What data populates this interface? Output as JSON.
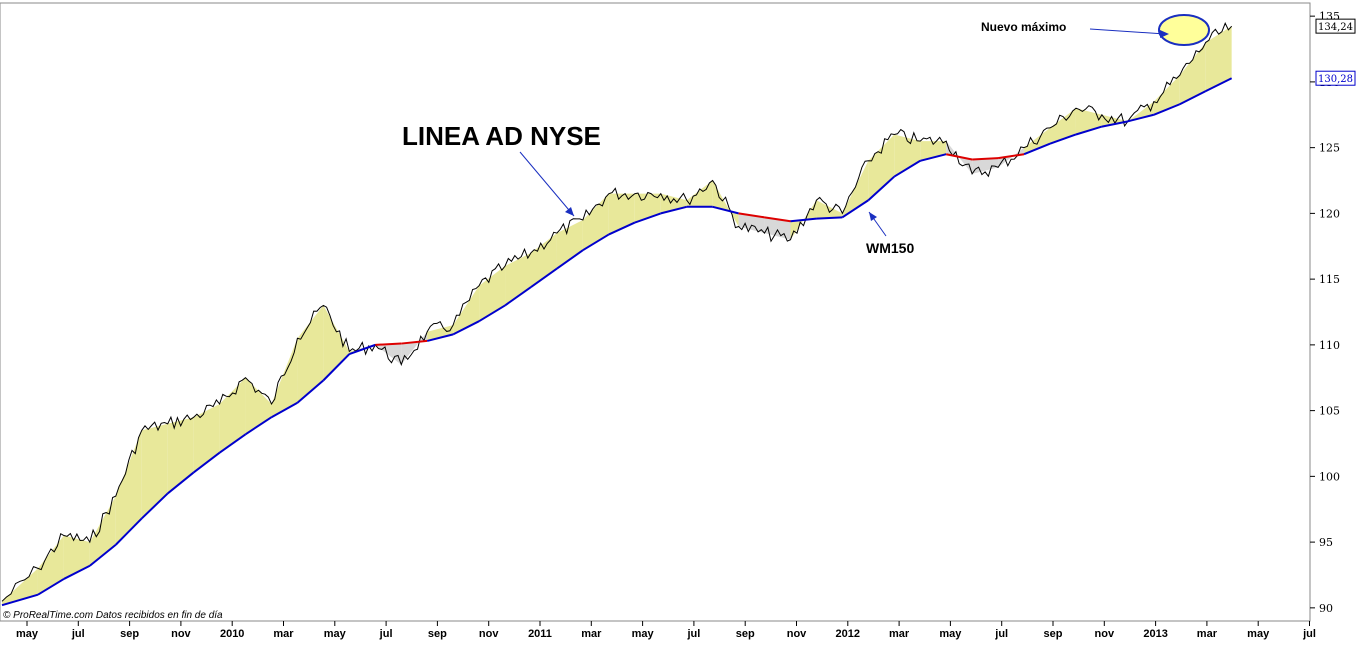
{
  "chart_data": {
    "type": "line",
    "title": "LINEA AD NYSE",
    "annotations": {
      "new_high": "Nuevo máximo",
      "ma_label": "WM150"
    },
    "footer": "© ProRealTime.com  Datos recibidos en fin de día",
    "xlabel": "",
    "ylabel": "",
    "ylim": [
      89,
      136
    ],
    "yticks": [
      90,
      95,
      100,
      105,
      110,
      115,
      120,
      125,
      130,
      135
    ],
    "x_tick_labels": [
      "may",
      "jul",
      "sep",
      "nov",
      "2010",
      "mar",
      "may",
      "jul",
      "sep",
      "nov",
      "2011",
      "mar",
      "may",
      "jul",
      "sep",
      "nov",
      "2012",
      "mar",
      "may",
      "jul",
      "sep",
      "nov",
      "2013",
      "mar",
      "may",
      "jul"
    ],
    "last_values": {
      "price": "134,24",
      "ma": "130,28"
    },
    "series": [
      {
        "x": [
          "2009-04",
          "2009-05",
          "2009-06",
          "2009-07",
          "2009-08",
          "2009-09",
          "2009-10",
          "2009-11",
          "2009-12",
          "2010-01",
          "2010-02",
          "2010-03",
          "2010-04",
          "2010-05",
          "2010-06",
          "2010-07",
          "2010-08",
          "2010-09",
          "2010-10",
          "2010-11",
          "2010-12",
          "2011-01",
          "2011-02",
          "2011-03",
          "2011-04",
          "2011-05",
          "2011-06",
          "2011-07",
          "2011-08",
          "2011-09",
          "2011-10",
          "2011-11",
          "2011-12",
          "2012-01",
          "2012-02",
          "2012-03",
          "2012-04",
          "2012-05",
          "2012-06",
          "2012-07",
          "2012-08",
          "2012-09",
          "2012-10",
          "2012-11",
          "2012-12",
          "2013-01",
          "2013-02",
          "2013-03"
        ],
        "values": [
          90.5,
          93.0,
          95.5,
          95.0,
          98.5,
          103.5,
          104.0,
          104.5,
          105.5,
          107.5,
          105.5,
          110.5,
          113.0,
          109.5,
          110.0,
          108.5,
          111.0,
          111.5,
          114.5,
          116.0,
          117.0,
          118.5,
          119.5,
          121.5,
          121.5,
          121.5,
          121.0,
          122.5,
          119.0,
          118.5,
          118.0,
          121.0,
          120.0,
          124.0,
          126.0,
          125.5,
          125.5,
          123.0,
          123.5,
          125.0,
          126.5,
          128.0,
          127.5,
          127.0,
          128.5,
          130.5,
          133.0,
          134.24
        ]
      },
      {
        "x": [
          "2009-04",
          "2009-05",
          "2009-06",
          "2009-07",
          "2009-08",
          "2009-09",
          "2009-10",
          "2009-11",
          "2009-12",
          "2010-01",
          "2010-02",
          "2010-03",
          "2010-04",
          "2010-05",
          "2010-06",
          "2010-07",
          "2010-08",
          "2010-09",
          "2010-10",
          "2010-11",
          "2010-12",
          "2011-01",
          "2011-02",
          "2011-03",
          "2011-04",
          "2011-05",
          "2011-06",
          "2011-07",
          "2011-08",
          "2011-09",
          "2011-10",
          "2011-11",
          "2011-12",
          "2012-01",
          "2012-02",
          "2012-03",
          "2012-04",
          "2012-05",
          "2012-06",
          "2012-07",
          "2012-08",
          "2012-09",
          "2012-10",
          "2012-11",
          "2012-12",
          "2013-01",
          "2013-02",
          "2013-03"
        ],
        "values": [
          90.2,
          91.0,
          92.2,
          93.2,
          94.8,
          96.8,
          98.7,
          100.3,
          101.8,
          103.2,
          104.5,
          105.6,
          107.3,
          109.3,
          110.0,
          110.1,
          110.3,
          110.8,
          111.8,
          113.0,
          114.4,
          115.8,
          117.2,
          118.4,
          119.3,
          120.0,
          120.5,
          120.5,
          120.0,
          119.7,
          119.4,
          119.6,
          119.7,
          121.0,
          122.8,
          124.0,
          124.5,
          124.1,
          124.2,
          124.5,
          125.3,
          126.0,
          126.6,
          127.0,
          127.5,
          128.3,
          129.3,
          130.28
        ]
      }
    ],
    "colors": {
      "price_line": "#000000",
      "ma_line": "#0000cc",
      "ma_below": "#dd0000",
      "fill_above": "#e8e89a",
      "fill_below": "#d8d8d8",
      "arrow": "#1a2fc0",
      "highlight": "#ffff88",
      "axis": "#000000"
    }
  }
}
